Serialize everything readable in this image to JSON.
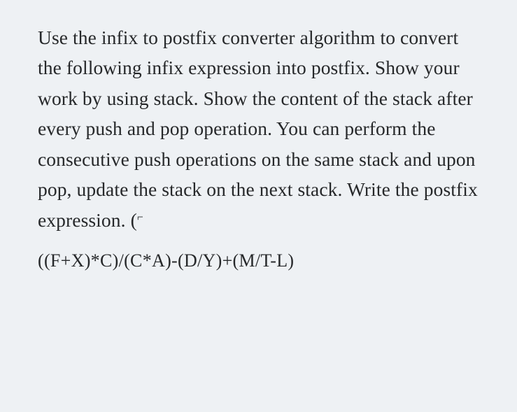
{
  "question": {
    "body": "Use the infix to postfix converter algorithm to convert the following infix expression into postfix. Show your work by using stack. Show the content of the stack after every push and pop operation. You can perform the consecutive push operations on the same stack and upon pop, update the stack on the next stack. Write the postfix expression. (",
    "trailing_mark": "⌐"
  },
  "expression": "((F+X)*C)/(C*A)-(D/Y)+(M/T-L)",
  "colors": {
    "background": "#eef1f4",
    "text": "#26282a"
  },
  "typography": {
    "body_fontsize": 27.5,
    "expression_fontsize": 26,
    "line_height": 1.58,
    "font_family": "Georgia, Times New Roman, serif"
  }
}
